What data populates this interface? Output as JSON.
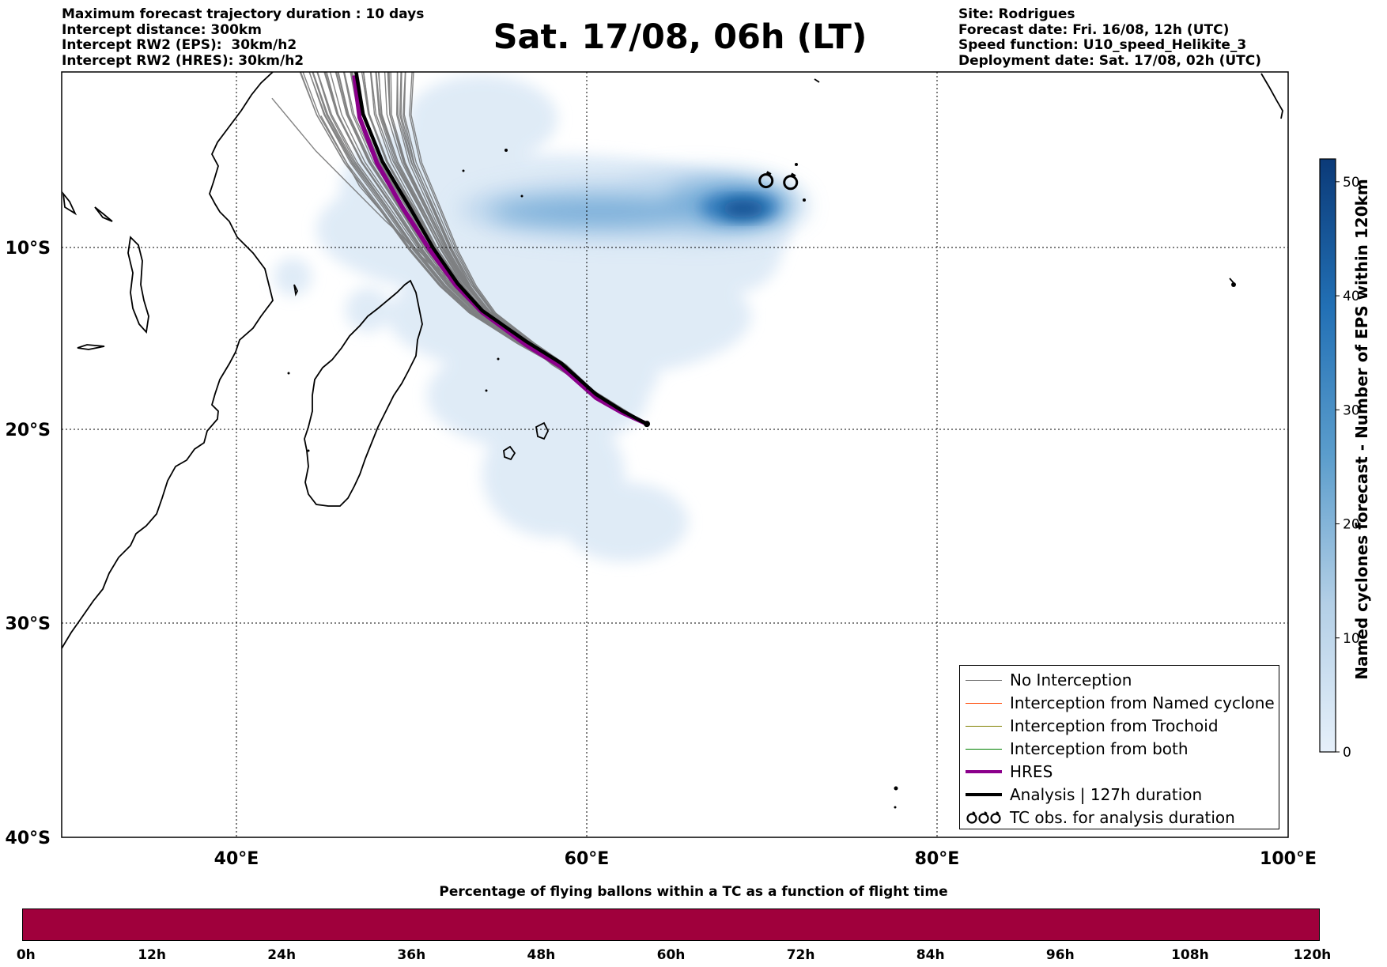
{
  "header": {
    "left_lines": [
      "Maximum forecast trajectory duration : 10 days",
      "Intercept distance: 300km",
      "Intercept RW2 (EPS):  30km/h2",
      "Intercept RW2 (HRES): 30km/h2"
    ],
    "title": "Sat. 17/08, 06h (LT)",
    "right_lines": [
      "Site: Rodrigues",
      "Forecast date: Fri. 16/08, 12h (UTC)",
      "Speed function: U10_speed_Helikite_3",
      "Deployment date: Sat. 17/08, 02h (UTC)"
    ]
  },
  "map": {
    "lon_range": [
      30,
      100
    ],
    "lat_range": [
      -40,
      0
    ],
    "lon_ticks": [
      "40°E",
      "60°E",
      "80°E",
      "100°E"
    ],
    "lat_ticks": [
      "10°S",
      "20°S",
      "30°S",
      "40°S"
    ],
    "release_site": {
      "lon": 63.4,
      "lat": -19.7
    },
    "hres_track": [
      [
        63.4,
        -19.7
      ],
      [
        62,
        -19.1
      ],
      [
        60.5,
        -18.3
      ],
      [
        58.5,
        -16.6
      ],
      [
        56.5,
        -15.4
      ],
      [
        54,
        -13.6
      ],
      [
        52.5,
        -12.1
      ],
      [
        51,
        -10.1
      ],
      [
        49.5,
        -7.8
      ],
      [
        48,
        -5.2
      ],
      [
        47,
        -2.6
      ],
      [
        46.7,
        -0.2
      ]
    ],
    "analysis_track": [
      [
        63.4,
        -19.7
      ],
      [
        62,
        -19.0
      ],
      [
        60.5,
        -18.1
      ],
      [
        58.5,
        -16.4
      ],
      [
        56.5,
        -15.2
      ],
      [
        54,
        -13.5
      ],
      [
        52.6,
        -12.0
      ],
      [
        51.2,
        -10.0
      ],
      [
        49.8,
        -7.6
      ],
      [
        48.3,
        -5.1
      ],
      [
        47.2,
        -2.4
      ],
      [
        46.8,
        0
      ]
    ],
    "tc_obs": [
      {
        "lon": 70.2,
        "lat": -6.2
      },
      {
        "lon": 71.6,
        "lat": -6.3
      }
    ],
    "colors": {
      "hres": "#8b008b",
      "analysis": "#000000",
      "no_interception": "#6e6e6e",
      "named_cyclone": "#ff4500",
      "trochoid": "#808000",
      "both": "#008000",
      "bottom_bar": "#a0003c"
    }
  },
  "colorbar": {
    "label": "Named cyclones forecast - Number of EPS within 120km",
    "ticks": [
      "0",
      "10",
      "20",
      "30",
      "40",
      "50"
    ],
    "range": [
      0,
      52
    ]
  },
  "legend": {
    "items": [
      {
        "label": "No Interception",
        "color": "#6e6e6e",
        "style": "thin"
      },
      {
        "label": "Interception from Named cyclone",
        "color": "#ff4500",
        "style": "thin"
      },
      {
        "label": "Interception from Trochoid",
        "color": "#808000",
        "style": "thin"
      },
      {
        "label": "Interception from both",
        "color": "#008000",
        "style": "thin"
      },
      {
        "label": "HRES",
        "color": "#8b008b",
        "style": "thick"
      },
      {
        "label": "Analysis | 127h duration",
        "color": "#000000",
        "style": "thick"
      },
      {
        "label": "TC obs. for analysis duration",
        "color": "#000000",
        "style": "symbol"
      }
    ]
  },
  "bottom": {
    "title": "Percentage of flying ballons within a TC as a function of flight time",
    "ticks": [
      "0h",
      "12h",
      "24h",
      "36h",
      "48h",
      "60h",
      "72h",
      "84h",
      "96h",
      "108h",
      "120h"
    ]
  }
}
